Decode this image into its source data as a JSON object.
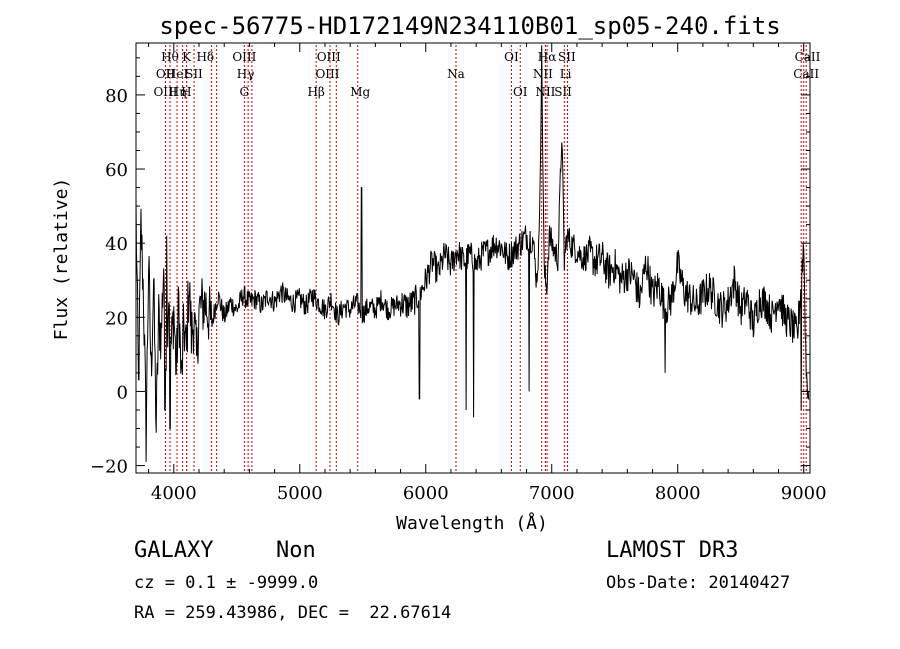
{
  "chart_data": {
    "type": "line",
    "title": "spec-56775-HD172149N234110B01_sp05-240.fits",
    "xlabel": "Wavelength (Å)",
    "ylabel": "Flux (relative)",
    "xlim": [
      3700,
      9050
    ],
    "ylim": [
      -22,
      94
    ],
    "xticks": [
      "4000",
      "5000",
      "6000",
      "7000",
      "8000",
      "9000"
    ],
    "yticks": [
      "−20",
      "0",
      "20",
      "40",
      "60",
      "80"
    ],
    "grid": false,
    "series": [
      {
        "x": [
          3700,
          3720,
          3740,
          3760,
          3780,
          3800,
          3820,
          3840,
          3860,
          3880,
          3900,
          3920,
          3940,
          3960,
          3980,
          4000,
          4020,
          4040,
          4060,
          4080,
          4100,
          4120,
          4140,
          4160,
          4180,
          4200,
          4250,
          4300,
          4350,
          4400,
          4450,
          4500,
          4550,
          4600,
          4650,
          4700,
          4750,
          4800,
          4850,
          4900,
          4950,
          5000,
          5050,
          5100,
          5150,
          5200,
          5250,
          5300,
          5350,
          5400,
          5450,
          5500,
          5550,
          5600,
          5650,
          5700,
          5750,
          5800,
          5850,
          5900,
          5950,
          6000,
          6050,
          6100,
          6150,
          6200,
          6250,
          6300,
          6350,
          6400,
          6450,
          6500,
          6550,
          6600,
          6650,
          6700,
          6750,
          6800,
          6850,
          6880,
          6900,
          6920,
          6940,
          6960,
          6980,
          7000,
          7020,
          7050,
          7080,
          7100,
          7120,
          7150,
          7200,
          7250,
          7300,
          7350,
          7400,
          7450,
          7500,
          7550,
          7600,
          7650,
          7700,
          7750,
          7800,
          7850,
          7900,
          7950,
          8000,
          8050,
          8100,
          8150,
          8200,
          8250,
          8300,
          8350,
          8400,
          8450,
          8500,
          8550,
          8600,
          8650,
          8700,
          8750,
          8800,
          8850,
          8900,
          8950,
          8980,
          9000,
          9020,
          9040
        ],
        "y": [
          50,
          0,
          45,
          25,
          -12,
          35,
          5,
          30,
          -10,
          20,
          15,
          35,
          10,
          28,
          12,
          22,
          5,
          25,
          2,
          18,
          10,
          30,
          15,
          20,
          8,
          22,
          24,
          18,
          26,
          20,
          24,
          22,
          26,
          24,
          25,
          23,
          26,
          24,
          27,
          25,
          24,
          25,
          23,
          26,
          24,
          22,
          25,
          20,
          23,
          22,
          24,
          21,
          23,
          22,
          25,
          22,
          23,
          24,
          23,
          24,
          26,
          30,
          35,
          32,
          37,
          34,
          38,
          35,
          37,
          34,
          37,
          38,
          40,
          39,
          36,
          38,
          40,
          42,
          41,
          30,
          40,
          90,
          32,
          28,
          42,
          40,
          38,
          36,
          70,
          35,
          42,
          40,
          38,
          36,
          37,
          35,
          36,
          32,
          34,
          30,
          32,
          31,
          25,
          35,
          26,
          29,
          22,
          25,
          34,
          27,
          25,
          23,
          26,
          28,
          25,
          22,
          24,
          30,
          22,
          25,
          18,
          25,
          24,
          20,
          26,
          20,
          18,
          15,
          30,
          40,
          5,
          0
        ],
        "spikes": [
          {
            "x": 3930,
            "y": -5
          },
          {
            "x": 3945,
            "y": 42
          },
          {
            "x": 3970,
            "y": -10
          },
          {
            "x": 5490,
            "y": 55
          },
          {
            "x": 5950,
            "y": -2
          },
          {
            "x": 6320,
            "y": -5
          },
          {
            "x": 6380,
            "y": -7
          },
          {
            "x": 6820,
            "y": 0
          },
          {
            "x": 7900,
            "y": 5
          },
          {
            "x": 8980,
            "y": -5
          }
        ]
      }
    ],
    "lines": [
      {
        "x": 3934,
        "row": 1,
        "label": "OII"
      },
      {
        "x": 3934,
        "row": 2,
        "label": "OIII"
      },
      {
        "x": 3970,
        "row": 0,
        "label": "Hθ"
      },
      {
        "x": 4026,
        "row": 1,
        "label": "HeI"
      },
      {
        "x": 4030,
        "row": 2,
        "label": "Hη"
      },
      {
        "x": 4102,
        "row": 0,
        "label": "K"
      },
      {
        "x": 4100,
        "row": 2,
        "label": "H"
      },
      {
        "x": 4160,
        "row": 1,
        "label": "SII"
      },
      {
        "x": 4250,
        "row": 0,
        "label": "Hδ"
      },
      {
        "x": 4560,
        "row": 0,
        "label": "OIII"
      },
      {
        "x": 4570,
        "row": 1,
        "label": "Hγ"
      },
      {
        "x": 4560,
        "row": 2,
        "label": "G"
      },
      {
        "x": 5230,
        "row": 0,
        "label": "OIII"
      },
      {
        "x": 5220,
        "row": 1,
        "label": "OIII"
      },
      {
        "x": 5130,
        "row": 2,
        "label": "Hβ"
      },
      {
        "x": 5480,
        "row": 2,
        "label": "Mg"
      },
      {
        "x": 6240,
        "row": 1,
        "label": "Na"
      },
      {
        "x": 6680,
        "row": 0,
        "label": "OI"
      },
      {
        "x": 6750,
        "row": 2,
        "label": "OI"
      },
      {
        "x": 6963,
        "row": 0,
        "label": "Hα"
      },
      {
        "x": 6930,
        "row": 1,
        "label": "NII"
      },
      {
        "x": 6950,
        "row": 2,
        "label": "NII"
      },
      {
        "x": 7120,
        "row": 0,
        "label": "SII"
      },
      {
        "x": 7110,
        "row": 1,
        "label": "Li"
      },
      {
        "x": 7090,
        "row": 2,
        "label": "SII"
      },
      {
        "x": 9030,
        "row": 0,
        "label": "CaII"
      },
      {
        "x": 9020,
        "row": 1,
        "label": "CaII"
      }
    ],
    "line_markers_x": [
      3934,
      3970,
      4026,
      4070,
      4102,
      4161,
      4300,
      4340,
      4560,
      4590,
      4620,
      5130,
      5240,
      5290,
      5460,
      6240,
      6680,
      6750,
      6920,
      6950,
      6963,
      7100,
      7125,
      8980,
      9000,
      9020
    ]
  },
  "info": {
    "class": "GALAXY",
    "subclass": "Non",
    "cz": "cz = 0.1 ± -9999.0",
    "radec": "RA = 259.43986, DEC =  22.67614",
    "survey": "LAMOST DR3",
    "obsdate": "Obs-Date: 20140427"
  }
}
